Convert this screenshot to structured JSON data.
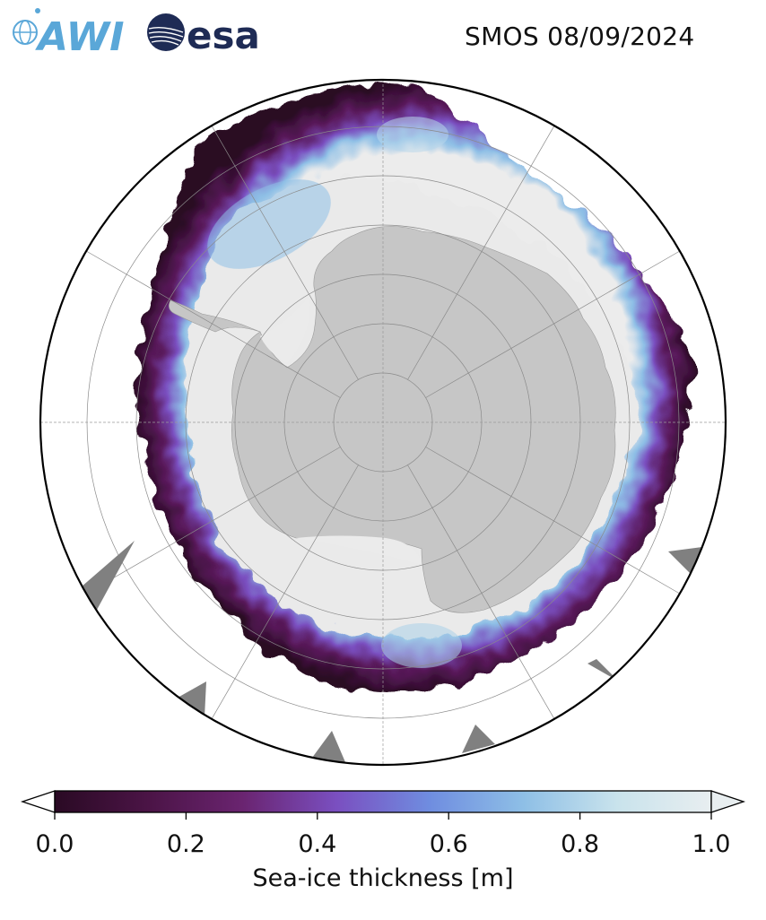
{
  "header": {
    "logo_left_text": "AWI",
    "logo_right_text": "esa",
    "title": "SMOS 08/09/2024"
  },
  "map": {
    "projection": "south-polar-stereographic",
    "variable": "sea-ice thickness",
    "land_color": "#c6c6c6",
    "ice_shelf_color": "#ebebeb",
    "gridline_color": "#8a8a8a",
    "missing_data_color": "#808080"
  },
  "colorbar": {
    "label": "Sea-ice thickness [m]",
    "min": 0.0,
    "max": 1.0,
    "ticks": [
      "0.0",
      "0.2",
      "0.4",
      "0.6",
      "0.8",
      "1.0"
    ],
    "tick_values": [
      0.0,
      0.2,
      0.4,
      0.6,
      0.8,
      1.0
    ],
    "extend": "both",
    "colors": [
      "#2a0a24",
      "#4b1446",
      "#6a2470",
      "#7a4fc0",
      "#6f8de0",
      "#8ebfe6",
      "#c9e3ec",
      "#e8eef0"
    ],
    "under_color": "#ffffff",
    "over_color": "#e8eef0"
  }
}
